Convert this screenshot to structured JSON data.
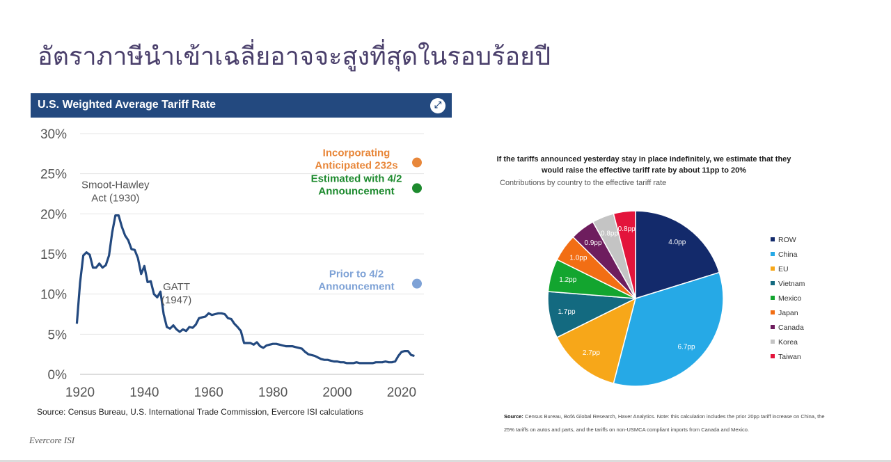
{
  "slide": {
    "title": "อัตราภาษีนำเข้าเฉลี่ยอาจจะสูงที่สุดในรอบร้อยปี",
    "brand": "Evercore ISI"
  },
  "left_panel": {
    "header": "U.S. Weighted Average Tariff Rate",
    "expand_icon": "expand-icon",
    "source": "Source: Census Bureau, U.S. International Trade Commission, Evercore ISI calculations"
  },
  "right_panel": {
    "headline_line1": "If the tariffs announced yesterday stay in place indefinitely, we estimate that they",
    "headline_line2": "would raise the effective tariff rate by about 11pp to 20%",
    "subtitle": "Contributions by country to the effective tariff rate",
    "source_label": "Source:",
    "source_line1": "Census Bureau, BofA Global Research, Haver Analytics. Note: this calculation includes the prior 20pp tariff increase on China, the",
    "source_line2": "25% tariffs on autos and parts, and the tariffs on non-USMCA compliant imports from Canada and Mexico."
  },
  "chart_data": [
    {
      "type": "line",
      "title": "U.S. Weighted Average Tariff Rate",
      "xlim": [
        1920,
        2025
      ],
      "ylim": [
        0,
        30
      ],
      "xticks": [
        1920,
        1940,
        1960,
        1980,
        2000,
        2020
      ],
      "yticks": [
        "0%",
        "5%",
        "10%",
        "15%",
        "20%",
        "25%",
        "30%"
      ],
      "ytick_values": [
        0,
        5,
        10,
        15,
        20,
        25,
        30
      ],
      "grid": "horizontal",
      "line_color": "#23497f",
      "x": [
        1919,
        1920,
        1921,
        1922,
        1923,
        1924,
        1925,
        1926,
        1927,
        1928,
        1929,
        1930,
        1931,
        1932,
        1933,
        1934,
        1935,
        1936,
        1937,
        1938,
        1939,
        1940,
        1941,
        1942,
        1943,
        1944,
        1945,
        1946,
        1947,
        1948,
        1949,
        1950,
        1951,
        1952,
        1953,
        1954,
        1955,
        1956,
        1957,
        1958,
        1959,
        1960,
        1961,
        1962,
        1963,
        1964,
        1965,
        1966,
        1967,
        1968,
        1969,
        1970,
        1971,
        1972,
        1973,
        1974,
        1975,
        1976,
        1977,
        1978,
        1979,
        1980,
        1981,
        1982,
        1983,
        1984,
        1985,
        1986,
        1987,
        1988,
        1989,
        1990,
        1991,
        1992,
        1993,
        1994,
        1995,
        1996,
        1997,
        1998,
        1999,
        2000,
        2001,
        2002,
        2003,
        2004,
        2005,
        2006,
        2007,
        2008,
        2009,
        2010,
        2011,
        2012,
        2013,
        2014,
        2015,
        2016,
        2017,
        2018,
        2019,
        2020,
        2021,
        2022,
        2023,
        2024
      ],
      "values": [
        6.3,
        11.4,
        14.8,
        15.2,
        14.9,
        13.3,
        13.3,
        13.8,
        13.3,
        13.6,
        14.8,
        17.7,
        19.8,
        19.8,
        18.4,
        17.3,
        16.7,
        15.6,
        15.5,
        14.5,
        12.5,
        13.5,
        11.5,
        11.6,
        10.0,
        9.6,
        10.3,
        7.5,
        5.9,
        5.7,
        6.1,
        5.6,
        5.3,
        5.6,
        5.4,
        5.9,
        5.8,
        6.2,
        7.0,
        7.1,
        7.2,
        7.6,
        7.4,
        7.5,
        7.6,
        7.6,
        7.5,
        7.0,
        6.9,
        6.3,
        5.9,
        5.4,
        3.9,
        3.9,
        3.9,
        3.7,
        4.0,
        3.5,
        3.3,
        3.6,
        3.7,
        3.8,
        3.8,
        3.7,
        3.6,
        3.5,
        3.5,
        3.5,
        3.4,
        3.3,
        3.2,
        2.8,
        2.5,
        2.4,
        2.3,
        2.1,
        1.9,
        1.8,
        1.8,
        1.7,
        1.6,
        1.6,
        1.5,
        1.5,
        1.4,
        1.4,
        1.4,
        1.5,
        1.4,
        1.4,
        1.4,
        1.4,
        1.4,
        1.5,
        1.5,
        1.5,
        1.6,
        1.5,
        1.5,
        1.6,
        2.3,
        2.8,
        2.9,
        2.9,
        2.4,
        2.3
      ],
      "annotations": [
        {
          "line1": "Smoot-Hawley",
          "line2": "Act (1930)",
          "x": 1931,
          "y": 23.2
        },
        {
          "line1": "GATT",
          "line2": "(1947)",
          "x": 1950,
          "y": 10.5
        }
      ],
      "future_points": [
        {
          "line1": "Incorporating",
          "line2": "Anticipated 232s",
          "value": 26.4,
          "color": "#e8873a"
        },
        {
          "line1": "Estimated with 4/2",
          "line2": "Announcement",
          "value": 23.2,
          "color": "#1d8a2e"
        },
        {
          "line1": "Prior to 4/2",
          "line2": "Announcement",
          "value": 11.3,
          "color": "#7ea2d6"
        }
      ]
    },
    {
      "type": "pie",
      "title": "If the tariffs announced yesterday stay in place indefinitely, we estimate that they would raise the effective tariff rate by about 11pp to 20%",
      "subtitle": "Contributions by country to the effective tariff rate",
      "legend_position": "right",
      "slices": [
        {
          "name": "ROW",
          "value": 4.0,
          "label": "4.0pp",
          "color": "#132a6b",
          "label_color": "#ffffff"
        },
        {
          "name": "China",
          "value": 6.7,
          "label": "6.7pp",
          "color": "#26a9e6",
          "label_color": "#ffffff"
        },
        {
          "name": "EU",
          "value": 2.7,
          "label": "2.7pp",
          "color": "#f7a719",
          "label_color": "#ffffff"
        },
        {
          "name": "Vietnam",
          "value": 1.7,
          "label": "1.7pp",
          "color": "#136a80",
          "label_color": "#ffffff"
        },
        {
          "name": "Mexico",
          "value": 1.2,
          "label": "1.2pp",
          "color": "#13a52f",
          "label_color": "#ffffff"
        },
        {
          "name": "Japan",
          "value": 1.0,
          "label": "1.0pp",
          "color": "#f26e14",
          "label_color": "#ffffff"
        },
        {
          "name": "Canada",
          "value": 0.9,
          "label": "0.9pp",
          "color": "#6e1d5e",
          "label_color": "#ffffff"
        },
        {
          "name": "Korea",
          "value": 0.8,
          "label": "0.8pp",
          "color": "#c4c4c4",
          "label_color": "#ffffff"
        },
        {
          "name": "Taiwan",
          "value": 0.8,
          "label": "0.8pp",
          "color": "#e3143b",
          "label_color": "#ffffff"
        }
      ]
    }
  ]
}
